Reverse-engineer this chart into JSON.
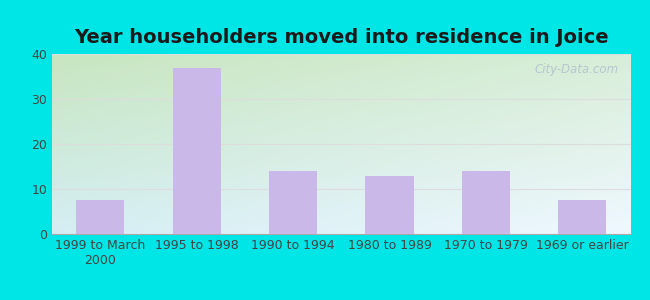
{
  "title": "Year householders moved into residence in Joice",
  "categories": [
    "1999 to March\n2000",
    "1995 to 1998",
    "1990 to 1994",
    "1980 to 1989",
    "1970 to 1979",
    "1969 or earlier"
  ],
  "values": [
    7.5,
    37,
    14,
    13,
    14,
    7.5
  ],
  "bar_color": "#c9b8e8",
  "background_outer": "#00e5e5",
  "background_inner_topleft": "#c8e6c0",
  "background_inner_bottomright": "#e8f4f8",
  "ylim": [
    0,
    40
  ],
  "yticks": [
    0,
    10,
    20,
    30,
    40
  ],
  "title_fontsize": 14,
  "tick_fontsize": 9,
  "watermark": "City-Data.com",
  "grid_color": "#dddddd",
  "text_color": "#444444"
}
